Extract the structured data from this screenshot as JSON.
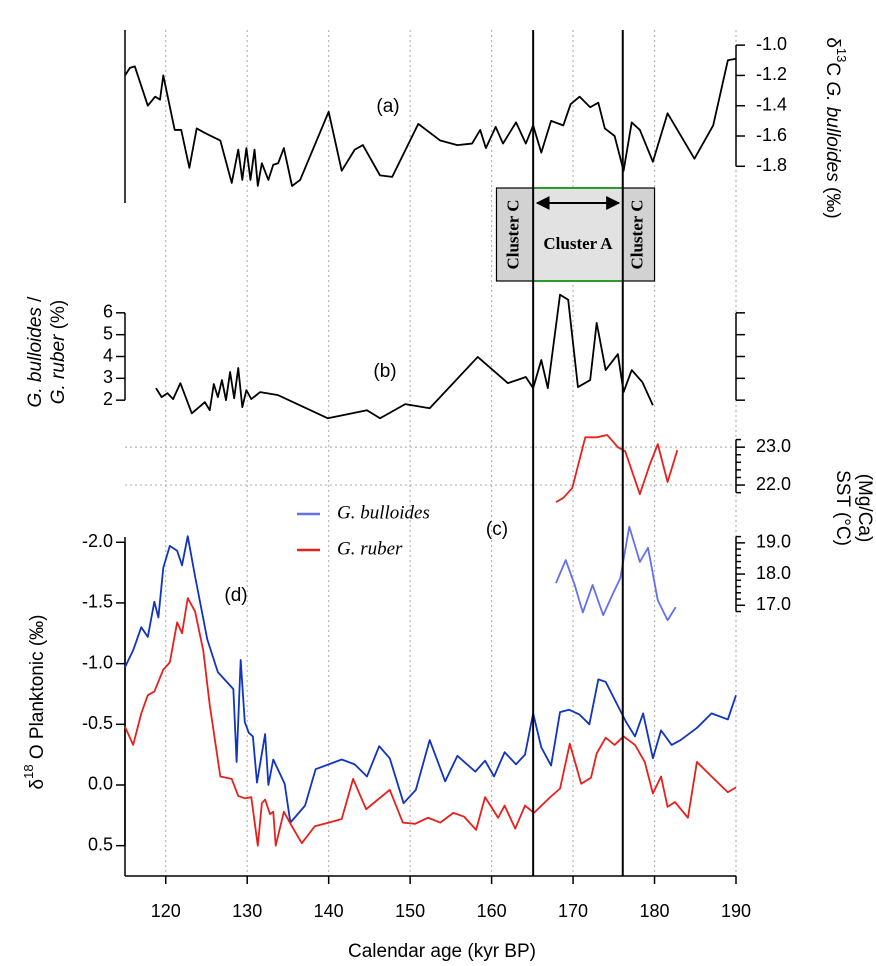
{
  "chart_data": [
    {
      "type": "line",
      "panel_label": "(a)",
      "ylabel": [
        "δ",
        "13",
        "C",
        "G. bulloides",
        "(‰)"
      ],
      "yaxis_side": "right",
      "ylim": [
        -1.95,
        -0.9
      ],
      "yticks": [
        {
          "value": -1,
          "label": "-1.0"
        },
        -1.2,
        -1.4,
        -1.6,
        -1.8
      ],
      "series": [
        {
          "color": "#000000",
          "x": [
            115,
            115.6,
            116.2,
            117.8,
            118.7,
            119.3,
            119.7,
            121.1,
            121.9,
            122.9,
            123.8,
            124.8,
            126.7,
            128.1,
            128.9,
            129.4,
            129.9,
            130.4,
            130.9,
            131.3,
            131.8,
            132.6,
            133.2,
            133.8,
            134.5,
            135.5,
            136.5,
            140,
            141.6,
            143.2,
            144.2,
            146.3,
            147.8,
            151,
            153.7,
            155.8,
            157.6,
            158.6,
            159.3,
            160.5,
            161.4,
            163,
            164.2,
            165.1,
            166.1,
            167.3,
            168.8,
            169.7,
            170.8,
            172.1,
            173.1,
            173.9,
            175.1,
            176.2,
            177.2,
            178.2,
            179.8,
            181.6,
            184.9,
            187.2,
            189,
            190
          ],
          "values": [
            -1.2,
            -1.15,
            -1.14,
            -1.4,
            -1.34,
            -1.36,
            -1.2,
            -1.56,
            -1.56,
            -1.81,
            -1.55,
            -1.58,
            -1.63,
            -1.91,
            -1.69,
            -1.89,
            -1.68,
            -1.89,
            -1.69,
            -1.93,
            -1.78,
            -1.89,
            -1.79,
            -1.78,
            -1.68,
            -1.93,
            -1.89,
            -1.44,
            -1.83,
            -1.69,
            -1.66,
            -1.86,
            -1.87,
            -1.52,
            -1.63,
            -1.66,
            -1.65,
            -1.56,
            -1.68,
            -1.54,
            -1.65,
            -1.51,
            -1.65,
            -1.53,
            -1.71,
            -1.5,
            -1.53,
            -1.39,
            -1.34,
            -1.41,
            -1.38,
            -1.55,
            -1.6,
            -1.83,
            -1.51,
            -1.56,
            -1.77,
            -1.45,
            -1.75,
            -1.53,
            -1.1,
            -1.09
          ]
        }
      ]
    },
    {
      "type": "line",
      "panel_label": "(b)",
      "ylabel": [
        "G. bulloides",
        "/",
        "G. ruber",
        "(%)"
      ],
      "yaxis_side": "left",
      "mirror_ticks": true,
      "ylim": [
        1,
        7
      ],
      "yticks": [
        2,
        3,
        4,
        5,
        6
      ],
      "series": [
        {
          "color": "#000000",
          "x": [
            118.8,
            119.5,
            120.2,
            120.9,
            121.8,
            123.2,
            124.8,
            125.4,
            125.9,
            126.4,
            126.9,
            127.4,
            127.9,
            128.4,
            128.9,
            129.4,
            129.9,
            130.5,
            131.6,
            133.8,
            139.9,
            144.7,
            146.3,
            149.4,
            152.4,
            158.3,
            162,
            163.5,
            164.2,
            165.1,
            166.1,
            166.9,
            168.4,
            169.4,
            170.6,
            172.1,
            172.9,
            174,
            175.5,
            176.2,
            177.2,
            178.5,
            179.8
          ],
          "values": [
            2.55,
            2.14,
            2.32,
            2.05,
            2.78,
            1.4,
            1.91,
            1.54,
            2.74,
            2.14,
            2.92,
            2.0,
            3.29,
            2.09,
            3.47,
            1.68,
            2.46,
            2.05,
            2.37,
            2.23,
            1.17,
            1.54,
            1.17,
            1.82,
            1.63,
            3.98,
            2.78,
            2.97,
            3.06,
            2.55,
            3.84,
            2.55,
            6.83,
            6.6,
            2.6,
            2.92,
            5.54,
            3.38,
            4.11,
            2.37,
            3.38,
            2.83,
            1.77
          ]
        }
      ]
    },
    {
      "type": "line",
      "panel_label": "(c)",
      "ylabel": [
        "SST (°C)",
        "(Mg/Ca)"
      ],
      "yaxis_side": "right",
      "grid": true,
      "ylim": [
        21.5,
        23.4
      ],
      "yticks": [
        {
          "value": 22,
          "label": "22.0"
        },
        {
          "value": 23,
          "label": "23.0"
        }
      ],
      "yminorticks": [
        21.8,
        22.2,
        22.4,
        22.6,
        22.8,
        23.2
      ],
      "y2lim": [
        16.4,
        19.7
      ],
      "y2ticks": [
        {
          "value": 17,
          "label": "17.0"
        },
        {
          "value": 18,
          "label": "18.0"
        },
        {
          "value": 19,
          "label": "19.0"
        }
      ],
      "y2minorticks": [
        16.8,
        17.2,
        17.4,
        17.6,
        17.8,
        18.2,
        18.4,
        18.6,
        18.8,
        19.2
      ],
      "series": [
        {
          "name": "G. bulloides",
          "color": "#6470f0",
          "axis": "y2",
          "x": [
            167.9,
            169.1,
            170.2,
            171.2,
            172.4,
            173.7,
            174.8,
            175.8,
            176.9,
            178.2,
            179.2,
            180.4,
            181.6,
            182.6
          ],
          "values": [
            17.71,
            18.45,
            17.65,
            16.77,
            17.65,
            16.68,
            17.32,
            17.87,
            19.52,
            18.39,
            18.84,
            17.16,
            16.52,
            16.94
          ]
        },
        {
          "name": "G. ruber",
          "color": "#e8201c",
          "axis": "y",
          "x": [
            167.9,
            168.8,
            169.9,
            171.5,
            172.9,
            174.2,
            175.5,
            176.4,
            178.2,
            179.4,
            180.4,
            181.6,
            182.8
          ],
          "values": [
            21.55,
            21.66,
            21.92,
            23.26,
            23.26,
            23.32,
            23.0,
            22.89,
            21.76,
            22.53,
            23.08,
            22.08,
            22.92
          ]
        }
      ]
    },
    {
      "type": "line",
      "panel_label": "(d)",
      "ylabel": [
        "δ",
        "18",
        "O Planktonic (‰)"
      ],
      "yaxis_side": "left",
      "ylim": [
        0.75,
        -2.2
      ],
      "yticks": [
        {
          "value": -2,
          "label": "-2.0"
        },
        -1.5,
        {
          "value": -1,
          "label": "-1.0"
        },
        -0.5,
        {
          "value": 0,
          "label": "0.0"
        },
        0.5
      ],
      "xlim": [
        115,
        190
      ],
      "xticks": [
        120,
        130,
        140,
        150,
        160,
        170,
        180,
        190
      ],
      "xlabel": "Calendar age (kyr BP)",
      "grid_x": true,
      "vlines": [
        165.1,
        176.1
      ],
      "clusters": [
        {
          "label": "Cluster C",
          "start": 160.6,
          "end": 165.1
        },
        {
          "label": "Cluster A",
          "start": 165.1,
          "end": 176.1
        },
        {
          "label": "Cluster C",
          "start": 176.1,
          "end": 180.0
        }
      ],
      "series": [
        {
          "color": "#1034c0",
          "x": [
            115,
            116,
            117,
            117.8,
            118.6,
            119.1,
            119.7,
            120.5,
            121.4,
            122,
            122.7,
            123.6,
            125.1,
            126.4,
            128.3,
            128.7,
            129.2,
            129.7,
            130.2,
            130.7,
            131.2,
            132.2,
            132.6,
            133.2,
            134.6,
            135.3,
            137.1,
            138.4,
            140,
            141.6,
            143.2,
            144.7,
            146.2,
            147.5,
            149.2,
            150.7,
            152.4,
            154.3,
            155.8,
            158,
            159.2,
            160.3,
            161.6,
            163,
            164.1,
            165.1,
            166.1,
            167.3,
            168.4,
            169.5,
            170.8,
            172,
            173.1,
            174,
            176.5,
            177.6,
            178.6,
            179.8,
            180.8,
            182.1,
            183.2,
            185.2,
            187,
            189,
            190
          ],
          "values": [
            -0.97,
            -1.11,
            -1.3,
            -1.22,
            -1.51,
            -1.38,
            -1.79,
            -1.97,
            -1.93,
            -1.81,
            -2.05,
            -1.72,
            -1.2,
            -0.93,
            -0.79,
            -0.19,
            -1.03,
            -0.52,
            -0.43,
            -0.4,
            -0.02,
            -0.42,
            0,
            -0.21,
            -0.01,
            0.31,
            0.17,
            -0.13,
            -0.17,
            -0.21,
            -0.17,
            -0.07,
            -0.32,
            -0.22,
            0.15,
            0.04,
            -0.37,
            -0.03,
            -0.24,
            -0.11,
            -0.2,
            -0.07,
            -0.27,
            -0.17,
            -0.25,
            -0.59,
            -0.31,
            -0.16,
            -0.6,
            -0.62,
            -0.58,
            -0.5,
            -0.87,
            -0.85,
            -0.52,
            -0.4,
            -0.59,
            -0.22,
            -0.45,
            -0.33,
            -0.37,
            -0.47,
            -0.59,
            -0.54,
            -0.74
          ]
        },
        {
          "color": "#e8201c",
          "x": [
            115,
            116,
            117,
            117.8,
            118.6,
            119.7,
            120.5,
            121.4,
            122,
            122.7,
            123.6,
            124.6,
            125.4,
            126.7,
            128.1,
            128.9,
            129.7,
            130.5,
            131.3,
            131.8,
            132.2,
            132.8,
            133.2,
            133.5,
            134.5,
            135.4,
            136.7,
            138.3,
            140,
            141.6,
            143,
            144.6,
            147.5,
            149.1,
            150.6,
            152.2,
            153.7,
            155.3,
            156.6,
            158.1,
            159.2,
            160.8,
            161.6,
            162.9,
            164.1,
            165.2,
            167.2,
            168.4,
            169.6,
            171,
            172.2,
            172.9,
            174,
            175.1,
            176.2,
            177.6,
            178.8,
            179.8,
            180.8,
            181.6,
            182.5,
            184.1,
            185.2,
            187,
            189,
            190
          ],
          "values": [
            -0.48,
            -0.33,
            -0.59,
            -0.74,
            -0.77,
            -0.95,
            -1.01,
            -1.34,
            -1.25,
            -1.54,
            -1.43,
            -1.11,
            -0.66,
            -0.07,
            -0.05,
            0.09,
            0.11,
            0.1,
            0.5,
            0.15,
            0.12,
            0.24,
            0.22,
            0.5,
            0.22,
            0.33,
            0.48,
            0.34,
            0.31,
            0.28,
            -0.05,
            0.2,
            0.04,
            0.31,
            0.32,
            0.27,
            0.31,
            0.23,
            0.26,
            0.37,
            0.1,
            0.27,
            0.17,
            0.36,
            0.17,
            0.23,
            0.1,
            0.03,
            -0.34,
            -0.01,
            -0.06,
            -0.26,
            -0.39,
            -0.33,
            -0.4,
            -0.33,
            -0.19,
            0.07,
            -0.07,
            0.18,
            0.14,
            0.27,
            -0.19,
            -0.07,
            0.06,
            0.02
          ]
        }
      ]
    }
  ]
}
